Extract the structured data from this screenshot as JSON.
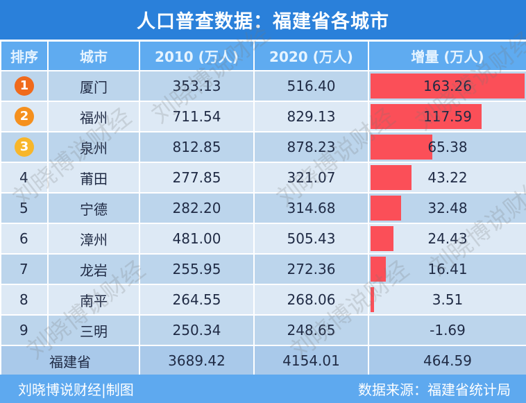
{
  "title": "人口普查数据：福建省各城市",
  "chart_data": {
    "type": "table",
    "columns": [
      "排序",
      "城市",
      "2010 (万人)",
      "2020 (万人)",
      "增量 (万人)"
    ],
    "rows": [
      {
        "rank": "1",
        "city": "厦门",
        "y2010": "353.13",
        "y2020": "516.40",
        "inc": 163.26
      },
      {
        "rank": "2",
        "city": "福州",
        "y2010": "711.54",
        "y2020": "829.13",
        "inc": 117.59
      },
      {
        "rank": "3",
        "city": "泉州",
        "y2010": "812.85",
        "y2020": "878.23",
        "inc": 65.38
      },
      {
        "rank": "4",
        "city": "莆田",
        "y2010": "277.85",
        "y2020": "321.07",
        "inc": 43.22
      },
      {
        "rank": "5",
        "city": "宁德",
        "y2010": "282.20",
        "y2020": "314.68",
        "inc": 32.48
      },
      {
        "rank": "6",
        "city": "漳州",
        "y2010": "481.00",
        "y2020": "505.43",
        "inc": 24.43
      },
      {
        "rank": "7",
        "city": "龙岩",
        "y2010": "255.95",
        "y2020": "272.36",
        "inc": 16.41
      },
      {
        "rank": "8",
        "city": "南平",
        "y2010": "264.55",
        "y2020": "268.06",
        "inc": 3.51
      },
      {
        "rank": "9",
        "city": "三明",
        "y2010": "250.34",
        "y2020": "248.65",
        "inc": -1.69
      }
    ],
    "total": {
      "label": "福建省",
      "y2010": "3689.42",
      "y2020": "4154.01",
      "inc": "464.59"
    },
    "bar_color": "#fb4f58",
    "medal_colors": [
      "#f06a1c",
      "#f5901e",
      "#f8b62a"
    ]
  },
  "footer": {
    "left": "刘晓博说财经|制图",
    "right": "数据来源：福建省统计局"
  },
  "watermark": "刘晓博说财经"
}
